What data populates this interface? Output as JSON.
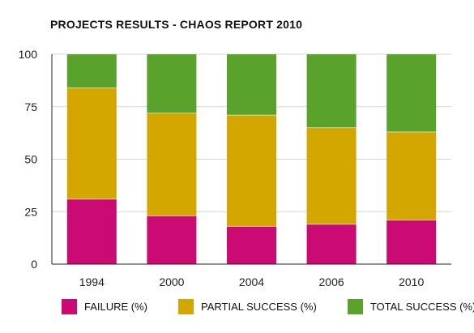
{
  "chart_data": {
    "type": "bar",
    "stacked": true,
    "title": "PROJECTS RESULTS - CHAOS REPORT 2010",
    "xlabel": "",
    "ylabel": "",
    "categories": [
      "1994",
      "2000",
      "2004",
      "2006",
      "2010"
    ],
    "ylim": [
      0,
      100
    ],
    "yticks": [
      "0",
      "25",
      "50",
      "75",
      "100"
    ],
    "grid": true,
    "legend_position": "bottom",
    "series": [
      {
        "name": "FAILURE (%)",
        "color": "#cc0a73",
        "values": [
          31,
          23,
          18,
          19,
          21
        ]
      },
      {
        "name": "PARTIAL SUCCESS (%)",
        "color": "#d4a600",
        "values": [
          53,
          49,
          53,
          46,
          42
        ]
      },
      {
        "name": "TOTAL SUCCESS (%)",
        "color": "#59a22b",
        "values": [
          16,
          28,
          29,
          35,
          37
        ]
      }
    ]
  }
}
